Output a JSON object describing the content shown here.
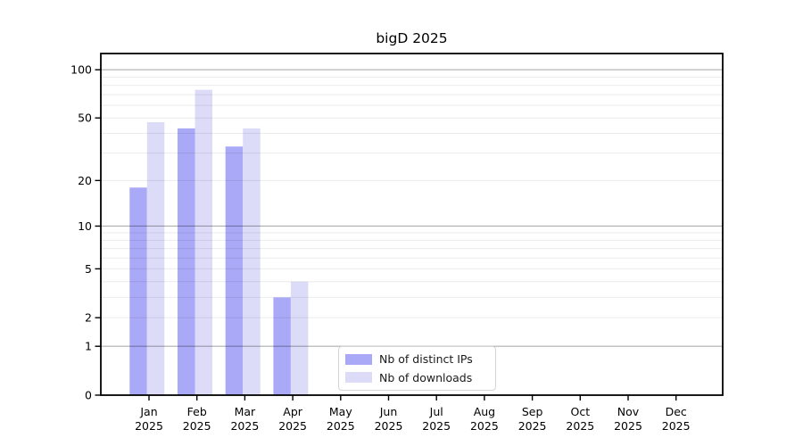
{
  "chart_data": {
    "type": "bar",
    "title": "bigD 2025",
    "year": "2025",
    "categories": [
      "Jan",
      "Feb",
      "Mar",
      "Apr",
      "May",
      "Jun",
      "Jul",
      "Aug",
      "Sep",
      "Oct",
      "Nov",
      "Dec"
    ],
    "series": [
      {
        "name": "Nb of distinct IPs",
        "color": "#a9a9f7",
        "values": [
          18,
          43,
          33,
          3,
          0,
          0,
          0,
          0,
          0,
          0,
          0,
          0
        ]
      },
      {
        "name": "Nb of downloads",
        "color": "#dcdcf8",
        "values": [
          47,
          75,
          43,
          4,
          0,
          0,
          0,
          0,
          0,
          0,
          0,
          0
        ]
      }
    ],
    "y_axis": {
      "scale": "log1p",
      "tick_labels": [
        0,
        1,
        2,
        5,
        10,
        20,
        50,
        100
      ],
      "major_gridlines": [
        1,
        10,
        100
      ],
      "minor_gridlines": [
        2,
        3,
        4,
        5,
        6,
        7,
        8,
        9,
        20,
        30,
        40,
        50,
        60,
        70,
        80,
        90
      ],
      "range": [
        0,
        127
      ]
    },
    "legend_position": "lower center-left inside plot",
    "grid": true,
    "background": "#ffffff"
  }
}
